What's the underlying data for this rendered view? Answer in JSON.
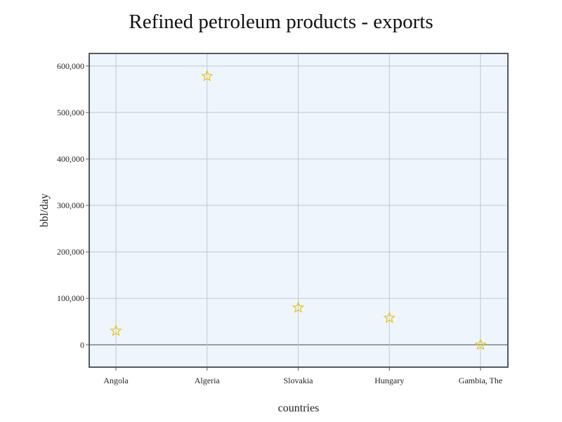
{
  "chart_data": {
    "type": "scatter",
    "title": "Refined petroleum products - exports",
    "xlabel": "countries",
    "ylabel": "bbl/day",
    "categories": [
      "Angola",
      "Algeria",
      "Slovakia",
      "Hungary",
      "Gambia, The"
    ],
    "series": [
      {
        "values": [
          30000,
          578000,
          80000,
          58000,
          0
        ]
      }
    ],
    "ylim": [
      -48000,
      627000
    ],
    "yticks": [
      0,
      100000,
      200000,
      300000,
      400000,
      500000,
      600000
    ],
    "ytick_labels": [
      "0",
      "100,000",
      "200,000",
      "300,000",
      "400,000",
      "500,000",
      "600,000"
    ],
    "marker": "star-open",
    "grid": true,
    "legend": "none",
    "colors": {
      "marker": "#e6c619",
      "plot_background": "#eff5fd",
      "grid": "#c0c8d2",
      "frame": "#555a60",
      "zero_line": "#666a70"
    }
  }
}
